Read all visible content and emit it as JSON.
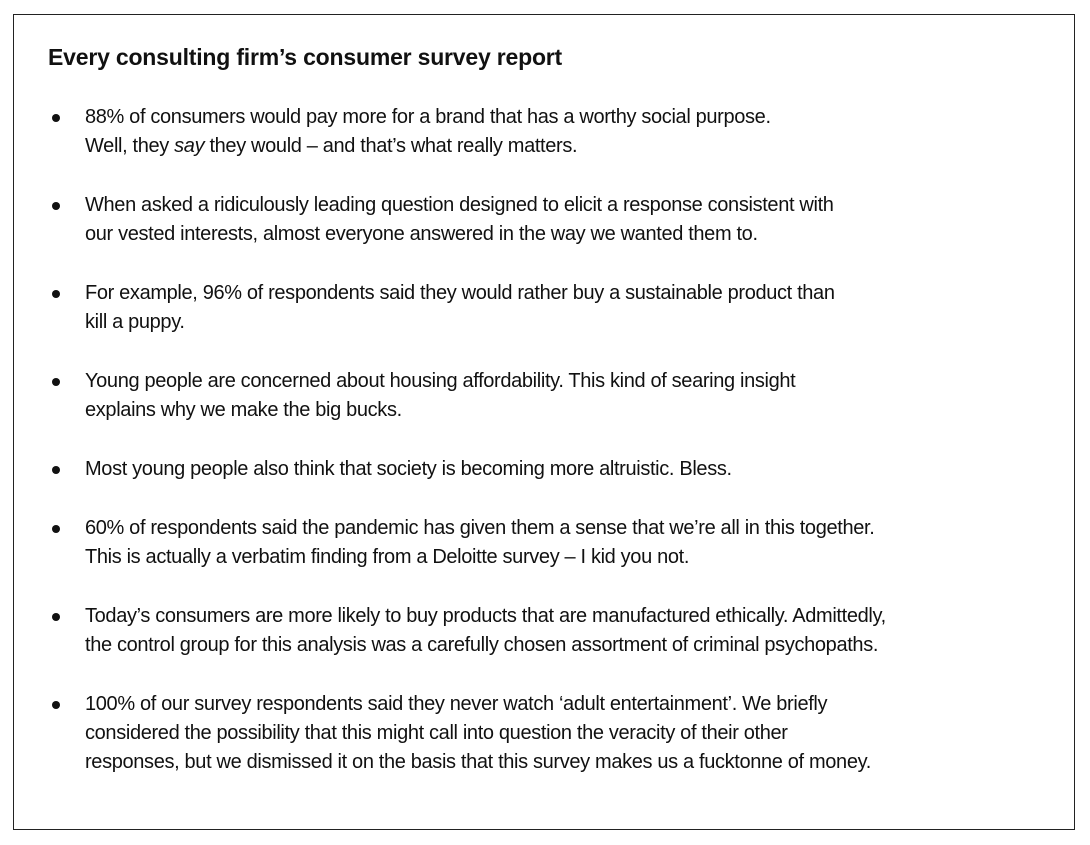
{
  "title": "Every consulting firm’s consumer survey report",
  "items": [
    {
      "line1": "88% of consumers would pay more for a brand that has a worthy social purpose.",
      "line2_before": "Well, they ",
      "line2_em": "say",
      "line2_after": " they would – and that’s what really matters."
    },
    {
      "line1": "When asked a ridiculously leading question designed to elicit a response consistent with",
      "line2": "our vested interests, almost everyone answered in the way we wanted them to."
    },
    {
      "line1": "For example, 96% of respondents said they would rather buy a sustainable product than",
      "line2": "kill a puppy."
    },
    {
      "line1": "Young people are concerned about housing affordability. This kind of searing insight",
      "line2": "explains why we make the big bucks."
    },
    {
      "line1": "Most young people also think that society is becoming more altruistic. Bless."
    },
    {
      "line1": "60% of respondents said the pandemic has given them a sense that we’re all in this together.",
      "line2": "This is actually a verbatim finding from a Deloitte survey – I kid you not."
    },
    {
      "line1": "Today’s consumers are more likely to buy products that are manufactured ethically. Admittedly,",
      "line2": "the control group for this analysis was a carefully chosen assortment of criminal psychopaths."
    },
    {
      "line1": "100% of our survey respondents said they never watch ‘adult entertainment’. We briefly",
      "line2": "considered the possibility that this might call into question the veracity of their other",
      "line3": "responses, but we dismissed it on the basis that this survey makes us a fucktonne of money."
    }
  ]
}
